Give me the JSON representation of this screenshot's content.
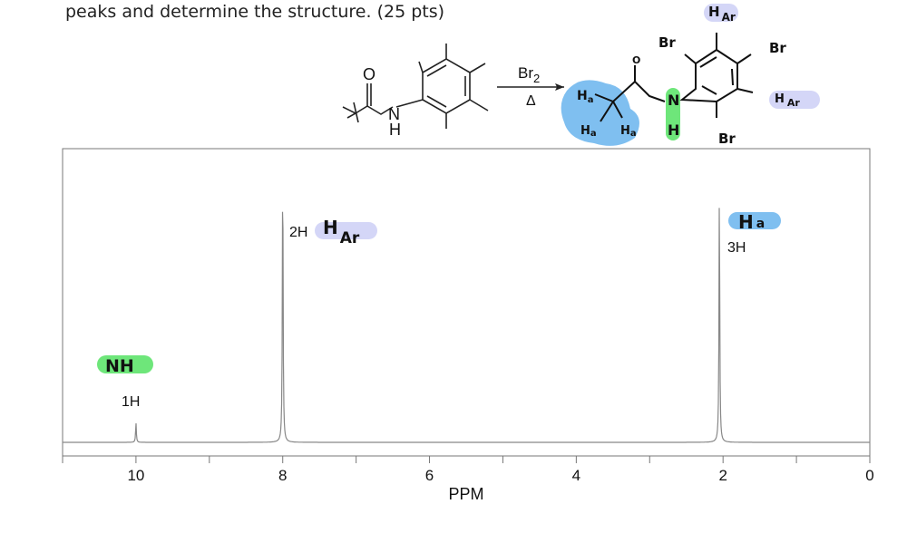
{
  "prompt_text": "peaks and determine the structure. (25 pts)",
  "reaction": {
    "reagent": "Br2",
    "condition": "Δ",
    "reactant_atoms": {
      "O": "O",
      "N": "N",
      "H": "H"
    },
    "product_labels": {
      "O": "O",
      "N": "N",
      "H": "H",
      "Br": "Br",
      "Ha": "H",
      "a": "a",
      "HAr": "H",
      "Ar": "Ar"
    }
  },
  "colors": {
    "Ha": "#7fbff0",
    "NH": "#6ee67a",
    "HAr": "#d4d6f7",
    "trace": "#888888",
    "axis": "#555555"
  },
  "chart_data": {
    "type": "line",
    "title": "",
    "xlabel": "PPM",
    "ylabel": "",
    "xlim": [
      11,
      0
    ],
    "x_reversed": true,
    "grid": false,
    "x_ticks": [
      10,
      8,
      6,
      4,
      2,
      0
    ],
    "x_tick_labels": [
      "10",
      "8",
      "6",
      "4",
      "2",
      "0"
    ],
    "x_minor_ticks": [
      11,
      9,
      7,
      5,
      3,
      1
    ],
    "peaks": [
      {
        "ppm": 10.0,
        "relative_intensity": 0.07,
        "integration": "1H",
        "assignment": "NH"
      },
      {
        "ppm": 8.0,
        "relative_intensity": 1.0,
        "integration": "2H",
        "assignment": "HAr"
      },
      {
        "ppm": 2.05,
        "relative_intensity": 0.9,
        "integration": "3H",
        "assignment": "Ha"
      }
    ],
    "annotations": {
      "nh": {
        "main": "NH",
        "integration": "1H"
      },
      "har": {
        "main": "H",
        "sub": "Ar",
        "integration": "2H"
      },
      "ha": {
        "main": "H",
        "sub": "a",
        "integration": "3H"
      }
    }
  }
}
